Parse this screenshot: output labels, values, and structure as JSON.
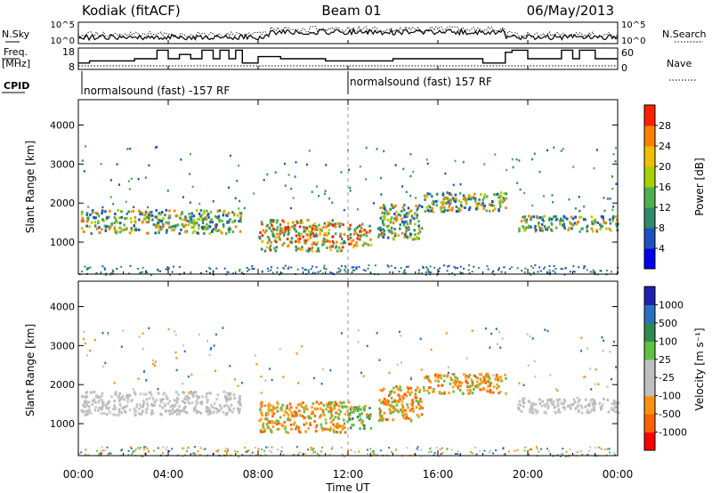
{
  "header": {
    "station": "Kodiak (fitACF)",
    "beam": "Beam 01",
    "date": "06/May/2013"
  },
  "strip": {
    "nsky_label": "N.Sky",
    "nsky_ticks": [
      "10^5",
      "10^0"
    ],
    "nsearch_label": "N.Search",
    "nsearch_ticks": [
      "10^5",
      "10^0"
    ],
    "freq_label_1": "Freq.",
    "freq_label_2": "[MHz]",
    "freq_ticks": [
      "18",
      "8"
    ],
    "nave_label": "Nave",
    "nave_ticks": [
      "60",
      "0"
    ],
    "cpid_label": "CPID",
    "cpid_entries": [
      {
        "t": 0.0,
        "text": "normalsound (fast) -157 RF"
      },
      {
        "t": 12.0,
        "text": "normalsound (fast) 157 RF"
      }
    ],
    "freq_steps": [
      [
        0,
        11
      ],
      [
        0.5,
        11
      ],
      [
        0.5,
        12
      ],
      [
        2.5,
        12
      ],
      [
        2.5,
        13
      ],
      [
        3.5,
        13
      ],
      [
        3.5,
        17
      ],
      [
        4.0,
        17
      ],
      [
        4.0,
        13
      ],
      [
        4.5,
        13
      ],
      [
        4.5,
        15
      ],
      [
        5.0,
        15
      ],
      [
        5.0,
        13
      ],
      [
        5.5,
        13
      ],
      [
        5.5,
        17
      ],
      [
        6.0,
        17
      ],
      [
        6.0,
        13
      ],
      [
        6.3,
        13
      ],
      [
        6.3,
        17
      ],
      [
        6.7,
        17
      ],
      [
        6.7,
        13
      ],
      [
        7.0,
        13
      ],
      [
        7.0,
        17
      ],
      [
        7.3,
        17
      ],
      [
        7.3,
        11
      ],
      [
        8.0,
        11
      ],
      [
        8.0,
        14
      ],
      [
        9.0,
        14
      ],
      [
        9.0,
        13
      ],
      [
        11.0,
        13
      ],
      [
        11.0,
        12
      ],
      [
        14.0,
        12
      ],
      [
        14.0,
        13
      ],
      [
        18.0,
        13
      ],
      [
        18.0,
        11
      ],
      [
        19.0,
        11
      ],
      [
        19.0,
        16
      ],
      [
        19.3,
        16
      ],
      [
        19.3,
        17
      ],
      [
        20.0,
        17
      ],
      [
        20.0,
        13
      ],
      [
        21.5,
        13
      ],
      [
        21.5,
        17
      ],
      [
        22.0,
        17
      ],
      [
        22.0,
        13
      ],
      [
        22.3,
        13
      ],
      [
        22.3,
        17
      ],
      [
        23.0,
        17
      ],
      [
        23.0,
        13
      ],
      [
        24.0,
        13
      ]
    ]
  },
  "panels": [
    {
      "name": "power",
      "ylabel": "Slant Range [km]",
      "yticks": [
        1000,
        2000,
        3000,
        4000
      ],
      "ylim": [
        180,
        4650
      ],
      "cbar_label": "Power [dB]",
      "cbar_ticks": [
        "4",
        "8",
        "12",
        "16",
        "20",
        "24",
        "28"
      ],
      "cbar_colors": [
        "#0000ee",
        "#1f4fc0",
        "#2f8a6a",
        "#50b050",
        "#a8d000",
        "#f0c000",
        "#ff8000",
        "#ff2000"
      ]
    },
    {
      "name": "velocity",
      "ylabel": "Slant Range [km]",
      "yticks": [
        1000,
        2000,
        3000,
        4000
      ],
      "ylim": [
        180,
        4650
      ],
      "cbar_label": "Velocity [m s⁻¹]",
      "cbar_ticks": [
        "1000",
        "500",
        "100",
        "25",
        "-25",
        "-100",
        "-500",
        "-1000"
      ],
      "cbar_colors": [
        "#2020b0",
        "#2a70c0",
        "#2f8a50",
        "#60c040",
        "#c0c0c0",
        "#c0c0c0",
        "#ff9010",
        "#ff6000",
        "#ff0000"
      ]
    }
  ],
  "xaxis": {
    "label": "Time UT",
    "ticks": [
      "00:00",
      "04:00",
      "08:00",
      "12:00",
      "16:00",
      "20:00",
      "00:00"
    ],
    "xlim": [
      0,
      24
    ]
  },
  "chart_data": {
    "type": "heatmap",
    "title": "Kodiak (fitACF)  Beam 01  06/May/2013",
    "xlabel": "Time UT",
    "ylabel": "Slant Range [km]",
    "xlim": [
      0,
      24
    ],
    "ylim": [
      180,
      4650
    ],
    "echo_regions": [
      {
        "t0": 0.1,
        "t1": 7.2,
        "r0": 1250,
        "r1": 1850,
        "power": "medium",
        "velocity": "low"
      },
      {
        "t0": 8.0,
        "t1": 12.0,
        "r0": 800,
        "r1": 1600,
        "power": "high",
        "velocity": "negative"
      },
      {
        "t0": 12.0,
        "t1": 13.0,
        "r0": 900,
        "r1": 1500,
        "power": "high",
        "velocity": "positive"
      },
      {
        "t0": 13.3,
        "t1": 15.3,
        "r0": 1100,
        "r1": 2000,
        "power": "medium",
        "velocity": "negative"
      },
      {
        "t0": 15.3,
        "t1": 19.0,
        "r0": 1800,
        "r1": 2300,
        "power": "medium",
        "velocity": "negative"
      },
      {
        "t0": 19.5,
        "t1": 24.0,
        "r0": 1300,
        "r1": 1700,
        "power": "medium",
        "velocity": "low"
      }
    ]
  }
}
